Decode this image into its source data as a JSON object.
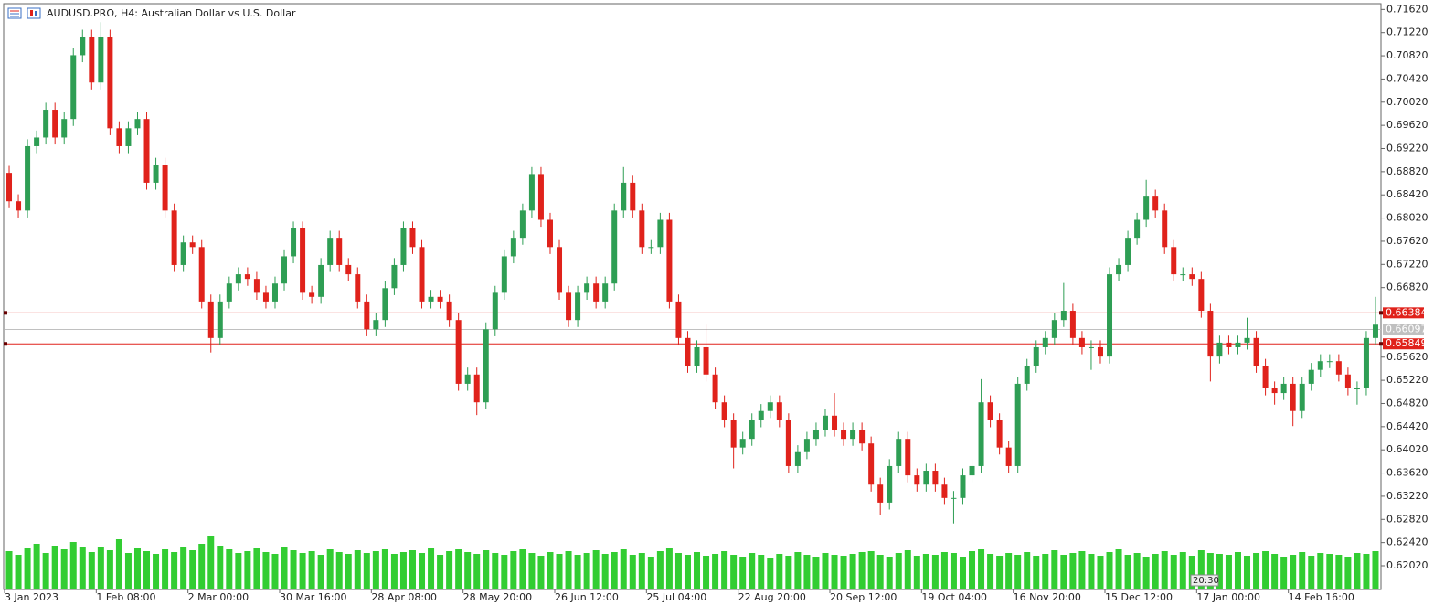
{
  "chart_data": {
    "type": "candlestick",
    "title": "AUDUSD.PRO, H4:  Australian Dollar vs U.S. Dollar",
    "clock": "20:30",
    "up_color": "#2e9e54",
    "down_color": "#e0221b",
    "volume_color": "#32cd32",
    "ylim": [
      0.6161,
      0.7172
    ],
    "yticks": [
      {
        "value": 0.7162,
        "label": "0.71620"
      },
      {
        "value": 0.7122,
        "label": "0.71220"
      },
      {
        "value": 0.7082,
        "label": "0.70820"
      },
      {
        "value": 0.7042,
        "label": "0.70420"
      },
      {
        "value": 0.7002,
        "label": "0.70020"
      },
      {
        "value": 0.6962,
        "label": "0.69620"
      },
      {
        "value": 0.6922,
        "label": "0.69220"
      },
      {
        "value": 0.6882,
        "label": "0.68820"
      },
      {
        "value": 0.6842,
        "label": "0.68420"
      },
      {
        "value": 0.6802,
        "label": "0.68020"
      },
      {
        "value": 0.6762,
        "label": "0.67620"
      },
      {
        "value": 0.6722,
        "label": "0.67220"
      },
      {
        "value": 0.6682,
        "label": "0.66820"
      },
      {
        "value": 0.6562,
        "label": "0.65620"
      },
      {
        "value": 0.6522,
        "label": "0.65220"
      },
      {
        "value": 0.6482,
        "label": "0.64820"
      },
      {
        "value": 0.6442,
        "label": "0.64420"
      },
      {
        "value": 0.6402,
        "label": "0.64020"
      },
      {
        "value": 0.6362,
        "label": "0.63620"
      },
      {
        "value": 0.6322,
        "label": "0.63220"
      },
      {
        "value": 0.6282,
        "label": "0.62820"
      },
      {
        "value": 0.6242,
        "label": "0.62420"
      },
      {
        "value": 0.6202,
        "label": "0.62020"
      }
    ],
    "levels": [
      {
        "value": 0.66384,
        "label": "0.66384",
        "color": "#e0221b"
      },
      {
        "value": 0.66097,
        "label": "0.66097",
        "color": "#c0c0c0"
      },
      {
        "value": 0.65849,
        "label": "0.65849",
        "color": "#e0221b"
      }
    ],
    "categories": [
      "3 Jan 2023",
      null,
      null,
      null,
      null,
      null,
      null,
      null,
      null,
      null,
      "1 Feb 08:00",
      null,
      null,
      null,
      null,
      null,
      null,
      null,
      null,
      null,
      "2 Mar 00:00",
      null,
      null,
      null,
      null,
      null,
      null,
      null,
      null,
      null,
      "30 Mar 16:00",
      null,
      null,
      null,
      null,
      null,
      null,
      null,
      null,
      null,
      "28 Apr 08:00",
      null,
      null,
      null,
      null,
      null,
      null,
      null,
      null,
      null,
      "28 May 20:00",
      null,
      null,
      null,
      null,
      null,
      null,
      null,
      null,
      null,
      "26 Jun 12:00",
      null,
      null,
      null,
      null,
      null,
      null,
      null,
      null,
      null,
      "25 Jul 04:00",
      null,
      null,
      null,
      null,
      null,
      null,
      null,
      null,
      null,
      "22 Aug 20:00",
      null,
      null,
      null,
      null,
      null,
      null,
      null,
      null,
      null,
      "20 Sep 12:00",
      null,
      null,
      null,
      null,
      null,
      null,
      null,
      null,
      null,
      "19 Oct 04:00",
      null,
      null,
      null,
      null,
      null,
      null,
      null,
      null,
      null,
      "16 Nov 20:00",
      null,
      null,
      null,
      null,
      null,
      null,
      null,
      null,
      null,
      "15 Dec 12:00",
      null,
      null,
      null,
      null,
      null,
      null,
      null,
      null,
      null,
      "17 Jan 00:00",
      null,
      null,
      null,
      null,
      null,
      null,
      null,
      null,
      null,
      "14 Feb 16:00",
      null,
      null,
      null,
      null,
      null,
      null,
      null,
      null,
      null
    ],
    "open": [
      0.688,
      0.6831,
      0.6815,
      0.6926,
      0.6941,
      0.6989,
      0.6941,
      0.6973,
      0.7083,
      0.7115,
      0.7036,
      0.7115,
      0.6957,
      0.6926,
      0.6957,
      0.6973,
      0.6863,
      0.6894,
      0.6815,
      0.6721,
      0.676,
      0.6752,
      0.6658,
      0.6595,
      0.6658,
      0.6689,
      0.6705,
      0.6697,
      0.6673,
      0.6658,
      0.6689,
      0.6736,
      0.6784,
      0.6673,
      0.6666,
      0.6721,
      0.6768,
      0.6721,
      0.6705,
      0.6658,
      0.661,
      0.6626,
      0.6681,
      0.6721,
      0.6784,
      0.6752,
      0.6658,
      0.6666,
      0.6658,
      0.6626,
      0.6516,
      0.6532,
      0.6484,
      0.661,
      0.6673,
      0.6736,
      0.6768,
      0.6815,
      0.6878,
      0.6799,
      0.6752,
      0.6673,
      0.6626,
      0.6673,
      0.6689,
      0.6658,
      0.6689,
      0.6815,
      0.6863,
      0.6815,
      0.6752,
      0.6752,
      0.6799,
      0.6658,
      0.6595,
      0.6547,
      0.6579,
      0.6532,
      0.6484,
      0.6453,
      0.6406,
      0.6421,
      0.6453,
      0.6469,
      0.6484,
      0.6453,
      0.6374,
      0.6398,
      0.6421,
      0.6437,
      0.6461,
      0.6437,
      0.6421,
      0.6437,
      0.6413,
      0.6342,
      0.6311,
      0.6374,
      0.6421,
      0.6358,
      0.6342,
      0.6366,
      0.6342,
      0.6319,
      0.6319,
      0.6358,
      0.6374,
      0.6484,
      0.6453,
      0.6406,
      0.6374,
      0.6516,
      0.6547,
      0.6579,
      0.6595,
      0.6626,
      0.6642,
      0.6595,
      0.6579,
      0.6579,
      0.6563,
      0.6705,
      0.6721,
      0.6768,
      0.6799,
      0.6839,
      0.6815,
      0.6752,
      0.6705,
      0.6705,
      0.6697,
      0.6642,
      0.6563,
      0.6587,
      0.6579,
      0.6587,
      0.6595,
      0.6547,
      0.6508,
      0.65,
      0.6516,
      0.6469,
      0.6516,
      0.654,
      0.6555,
      0.6555,
      0.6532,
      0.6508,
      0.6508,
      0.6595
    ],
    "high": [
      0.6892,
      0.6843,
      0.6938,
      0.6953,
      0.7001,
      0.7001,
      0.6985,
      0.7095,
      0.7127,
      0.7127,
      0.714,
      0.7127,
      0.6969,
      0.6969,
      0.6985,
      0.6985,
      0.6906,
      0.6906,
      0.6827,
      0.6772,
      0.6772,
      0.6764,
      0.667,
      0.667,
      0.6701,
      0.6717,
      0.6717,
      0.6709,
      0.6685,
      0.6701,
      0.6748,
      0.6796,
      0.6796,
      0.6685,
      0.6733,
      0.678,
      0.678,
      0.6733,
      0.6717,
      0.667,
      0.6638,
      0.6693,
      0.6733,
      0.6796,
      0.6796,
      0.6764,
      0.6678,
      0.6678,
      0.667,
      0.6638,
      0.6544,
      0.6544,
      0.6622,
      0.6685,
      0.6748,
      0.678,
      0.6827,
      0.689,
      0.689,
      0.6811,
      0.6764,
      0.6685,
      0.6685,
      0.6701,
      0.6701,
      0.6701,
      0.6827,
      0.689,
      0.6875,
      0.6827,
      0.6764,
      0.6811,
      0.6811,
      0.667,
      0.6607,
      0.6591,
      0.6618,
      0.6544,
      0.6496,
      0.6465,
      0.6433,
      0.6465,
      0.6481,
      0.6496,
      0.6496,
      0.6465,
      0.641,
      0.6433,
      0.6449,
      0.6473,
      0.65,
      0.6449,
      0.6449,
      0.6449,
      0.6425,
      0.6354,
      0.6386,
      0.6433,
      0.6433,
      0.637,
      0.6378,
      0.6378,
      0.6354,
      0.6331,
      0.637,
      0.6386,
      0.6524,
      0.6496,
      0.6465,
      0.6418,
      0.6528,
      0.6559,
      0.6591,
      0.6607,
      0.6638,
      0.669,
      0.6654,
      0.6607,
      0.6591,
      0.6591,
      0.6717,
      0.6733,
      0.678,
      0.6811,
      0.6868,
      0.6851,
      0.6827,
      0.6764,
      0.6717,
      0.6717,
      0.6709,
      0.6654,
      0.6599,
      0.6599,
      0.6599,
      0.663,
      0.6607,
      0.6559,
      0.652,
      0.6528,
      0.6528,
      0.6528,
      0.6552,
      0.6567,
      0.6567,
      0.6567,
      0.6544,
      0.652,
      0.6607,
      0.6666
    ],
    "low": [
      0.6819,
      0.6803,
      0.6803,
      0.6914,
      0.6929,
      0.6929,
      0.6929,
      0.6961,
      0.7071,
      0.7024,
      0.7024,
      0.6945,
      0.6914,
      0.6914,
      0.6945,
      0.6851,
      0.6851,
      0.6803,
      0.6709,
      0.6709,
      0.674,
      0.6646,
      0.657,
      0.6583,
      0.6646,
      0.6677,
      0.6685,
      0.6661,
      0.6646,
      0.6646,
      0.6677,
      0.6724,
      0.6661,
      0.6654,
      0.6654,
      0.6709,
      0.6709,
      0.6693,
      0.6646,
      0.6598,
      0.6598,
      0.6614,
      0.6669,
      0.6709,
      0.674,
      0.6646,
      0.6646,
      0.6646,
      0.6614,
      0.6504,
      0.6504,
      0.6462,
      0.6472,
      0.6598,
      0.6661,
      0.6724,
      0.6756,
      0.6803,
      0.6787,
      0.674,
      0.6661,
      0.6614,
      0.6614,
      0.6661,
      0.6646,
      0.6646,
      0.6677,
      0.6803,
      0.6803,
      0.674,
      0.674,
      0.674,
      0.6646,
      0.6583,
      0.6535,
      0.6535,
      0.652,
      0.6472,
      0.6441,
      0.637,
      0.6394,
      0.6409,
      0.6441,
      0.6457,
      0.6441,
      0.6362,
      0.6362,
      0.6386,
      0.6409,
      0.6425,
      0.6425,
      0.6409,
      0.6409,
      0.6401,
      0.633,
      0.629,
      0.6299,
      0.6362,
      0.6346,
      0.633,
      0.633,
      0.633,
      0.6307,
      0.6275,
      0.6307,
      0.6346,
      0.6362,
      0.6441,
      0.6394,
      0.6362,
      0.6362,
      0.6504,
      0.6535,
      0.6567,
      0.6583,
      0.6614,
      0.6583,
      0.6567,
      0.654,
      0.6551,
      0.6551,
      0.6693,
      0.6709,
      0.6756,
      0.6787,
      0.6803,
      0.674,
      0.6693,
      0.6693,
      0.6685,
      0.663,
      0.652,
      0.6551,
      0.6567,
      0.6567,
      0.6575,
      0.6535,
      0.6496,
      0.648,
      0.6488,
      0.6443,
      0.6457,
      0.6504,
      0.6528,
      0.6543,
      0.652,
      0.6496,
      0.648,
      0.6496,
      0.6583
    ],
    "close": [
      0.6831,
      0.6815,
      0.6926,
      0.6941,
      0.6989,
      0.6941,
      0.6973,
      0.7083,
      0.7115,
      0.7036,
      0.7115,
      0.6957,
      0.6926,
      0.6957,
      0.6973,
      0.6863,
      0.6894,
      0.6815,
      0.6721,
      0.676,
      0.6752,
      0.6658,
      0.6595,
      0.6658,
      0.6689,
      0.6705,
      0.6697,
      0.6673,
      0.6658,
      0.6689,
      0.6736,
      0.6784,
      0.6673,
      0.6666,
      0.6721,
      0.6768,
      0.6721,
      0.6705,
      0.6658,
      0.661,
      0.6626,
      0.6681,
      0.6721,
      0.6784,
      0.6752,
      0.6658,
      0.6666,
      0.6658,
      0.6626,
      0.6516,
      0.6532,
      0.6484,
      0.661,
      0.6673,
      0.6736,
      0.6768,
      0.6815,
      0.6878,
      0.6799,
      0.6752,
      0.6673,
      0.6626,
      0.6673,
      0.6689,
      0.6658,
      0.6689,
      0.6815,
      0.6863,
      0.6815,
      0.6752,
      0.6752,
      0.6799,
      0.6658,
      0.6595,
      0.6547,
      0.6579,
      0.6532,
      0.6484,
      0.6453,
      0.6406,
      0.6421,
      0.6453,
      0.6469,
      0.6484,
      0.6453,
      0.6374,
      0.6398,
      0.6421,
      0.6437,
      0.6461,
      0.6437,
      0.6421,
      0.6437,
      0.6413,
      0.6342,
      0.6311,
      0.6374,
      0.6421,
      0.6358,
      0.6342,
      0.6366,
      0.6342,
      0.6319,
      0.6319,
      0.6358,
      0.6374,
      0.6484,
      0.6453,
      0.6406,
      0.6374,
      0.6516,
      0.6547,
      0.6579,
      0.6595,
      0.6626,
      0.6642,
      0.6595,
      0.6579,
      0.6579,
      0.6563,
      0.6705,
      0.6721,
      0.6768,
      0.6799,
      0.6839,
      0.6815,
      0.6752,
      0.6705,
      0.6705,
      0.6697,
      0.6642,
      0.6563,
      0.6587,
      0.6579,
      0.6587,
      0.6595,
      0.6547,
      0.6508,
      0.65,
      0.6516,
      0.6469,
      0.6516,
      0.654,
      0.6555,
      0.6555,
      0.6532,
      0.6508,
      0.6508,
      0.6595,
      0.6618
    ],
    "volume_lim": [
      0,
      70
    ],
    "volume": [
      42,
      38,
      45,
      50,
      40,
      48,
      44,
      52,
      46,
      41,
      47,
      43,
      55,
      40,
      45,
      42,
      39,
      44,
      41,
      46,
      43,
      50,
      58,
      48,
      44,
      40,
      42,
      45,
      41,
      39,
      46,
      43,
      40,
      42,
      38,
      44,
      41,
      39,
      43,
      40,
      42,
      44,
      39,
      41,
      43,
      40,
      45,
      38,
      42,
      44,
      41,
      39,
      43,
      40,
      38,
      42,
      44,
      40,
      37,
      41,
      39,
      42,
      38,
      40,
      43,
      39,
      41,
      44,
      38,
      40,
      36,
      42,
      45,
      40,
      38,
      41,
      37,
      39,
      42,
      38,
      36,
      40,
      38,
      35,
      39,
      37,
      41,
      38,
      36,
      40,
      38,
      37,
      39,
      41,
      42,
      38,
      36,
      40,
      43,
      37,
      39,
      38,
      41,
      40,
      36,
      42,
      44,
      39,
      37,
      40,
      38,
      41,
      37,
      39,
      43,
      38,
      40,
      42,
      39,
      37,
      41,
      44,
      38,
      40,
      36,
      39,
      42,
      38,
      41,
      37,
      43,
      40,
      39,
      38,
      41,
      37,
      40,
      42,
      39,
      36,
      38,
      41,
      37,
      40,
      39,
      38,
      36,
      40,
      39,
      42
    ]
  }
}
